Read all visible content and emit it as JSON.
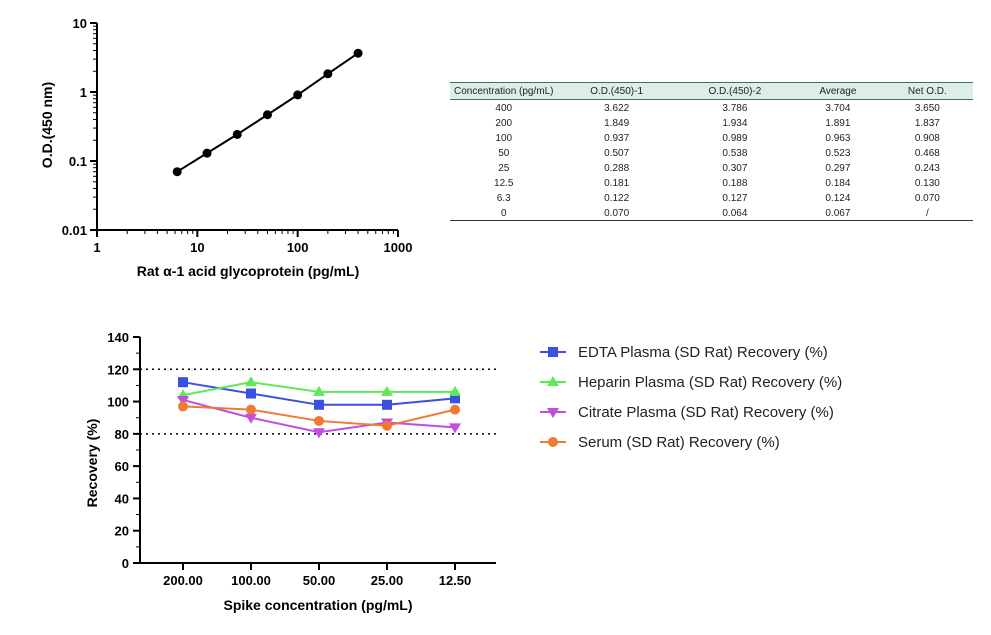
{
  "chart_data": [
    {
      "type": "line",
      "xlabel": "Rat α-1 acid glycoprotein (pg/mL)",
      "ylabel": "O.D.(450 nm)",
      "xscale": "log",
      "yscale": "log",
      "xlim": [
        1,
        1000
      ],
      "ylim": [
        0.01,
        10
      ],
      "xticks": [
        "1",
        "10",
        "100",
        "1000"
      ],
      "yticks": [
        "0.01",
        "0.1",
        "1",
        "10"
      ],
      "x": [
        6.3,
        12.5,
        25,
        50,
        100,
        200,
        400
      ],
      "y": [
        0.07,
        0.13,
        0.243,
        0.468,
        0.908,
        1.837,
        3.65
      ],
      "color": "#000000"
    },
    {
      "type": "table",
      "columns": [
        "Concentration (pg/mL)",
        "O.D.(450)-1",
        "O.D.(450)-2",
        "Average",
        "Net O.D."
      ],
      "rows": [
        [
          "400",
          "3.622",
          "3.786",
          "3.704",
          "3.650"
        ],
        [
          "200",
          "1.849",
          "1.934",
          "1.891",
          "1.837"
        ],
        [
          "100",
          "0.937",
          "0.989",
          "0.963",
          "0.908"
        ],
        [
          "50",
          "0.507",
          "0.538",
          "0.523",
          "0.468"
        ],
        [
          "25",
          "0.288",
          "0.307",
          "0.297",
          "0.243"
        ],
        [
          "12.5",
          "0.181",
          "0.188",
          "0.184",
          "0.130"
        ],
        [
          "6.3",
          "0.122",
          "0.127",
          "0.124",
          "0.070"
        ],
        [
          "0",
          "0.070",
          "0.064",
          "0.067",
          "/"
        ]
      ],
      "header_color": "#dcefe6"
    },
    {
      "type": "line",
      "xlabel": "Spike concentration (pg/mL)",
      "ylabel": "Recovery (%)",
      "categories": [
        "200.00",
        "100.00",
        "50.00",
        "25.00",
        "12.50"
      ],
      "ylim": [
        0,
        140
      ],
      "yticks": [
        "0",
        "20",
        "40",
        "60",
        "80",
        "100",
        "120",
        "140"
      ],
      "reference_lines": [
        120,
        80
      ],
      "legend_position": "right",
      "series": [
        {
          "name": "EDTA Plasma (SD Rat) Recovery (%)",
          "values": [
            112,
            105,
            98,
            98,
            102
          ],
          "color": "#3b4fe0",
          "marker": "square"
        },
        {
          "name": "Heparin Plasma (SD Rat) Recovery (%)",
          "values": [
            104,
            112,
            106,
            106,
            106
          ],
          "color": "#5ee85a",
          "marker": "triangle-up"
        },
        {
          "name": "Citrate Plasma (SD Rat) Recovery (%)",
          "values": [
            101,
            90,
            81,
            87,
            84
          ],
          "color": "#c04ee0",
          "marker": "triangle-down"
        },
        {
          "name": "Serum (SD Rat) Recovery (%)",
          "values": [
            97,
            95,
            88,
            85,
            95
          ],
          "color": "#f07a32",
          "marker": "circle"
        }
      ]
    }
  ]
}
